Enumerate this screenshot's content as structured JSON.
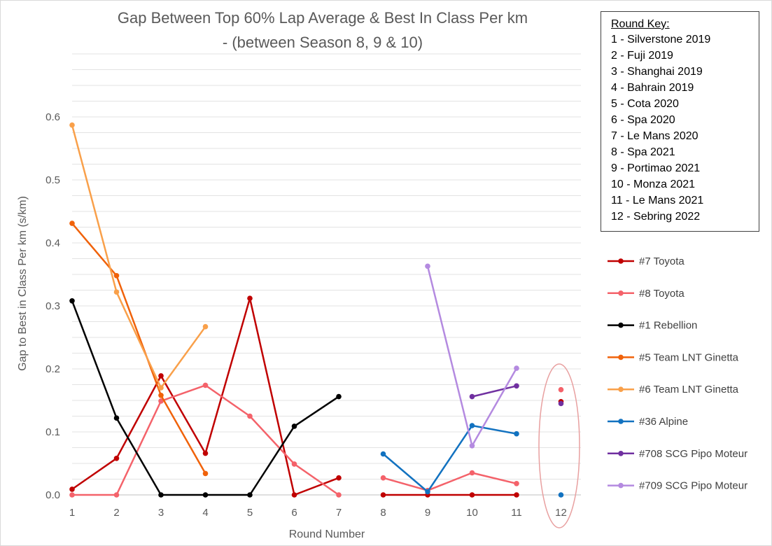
{
  "chart_data": {
    "type": "line",
    "title_line1": "Gap Between Top 60% Lap Average & Best In Class Per km",
    "title_line2": "- (between Season 8, 9 & 10)",
    "xlabel": "Round Number",
    "ylabel": "Gap to Best in Class Per km (s/km)",
    "x_categories": [
      "1",
      "2",
      "3",
      "4",
      "5",
      "6",
      "7",
      "8",
      "9",
      "10",
      "11",
      "12"
    ],
    "ylim": [
      0,
      0.69
    ],
    "yticks": [
      "0.0",
      "0.1",
      "0.2",
      "0.3",
      "0.4",
      "0.5",
      "0.6"
    ],
    "grid": true,
    "legend_position": "right",
    "series": [
      {
        "name": "#7 Toyota",
        "color": "#c00000",
        "points": [
          [
            1,
            0.009
          ],
          [
            2,
            0.058
          ],
          [
            3,
            0.189
          ],
          [
            4,
            0.066
          ],
          [
            5,
            0.312
          ],
          [
            6,
            0.0
          ],
          [
            7,
            0.027
          ],
          null,
          [
            8,
            0.0
          ],
          [
            9,
            0.0
          ],
          [
            10,
            0.0
          ],
          [
            11,
            0.0
          ],
          null,
          [
            12,
            0.148
          ]
        ]
      },
      {
        "name": "#8 Toyota",
        "color": "#f4626a",
        "points": [
          [
            1,
            0.0
          ],
          [
            2,
            0.0
          ],
          [
            3,
            0.149
          ],
          [
            4,
            0.174
          ],
          [
            5,
            0.125
          ],
          [
            6,
            0.049
          ],
          [
            7,
            0.0
          ],
          null,
          [
            8,
            0.027
          ],
          [
            9,
            0.007
          ],
          [
            10,
            0.035
          ],
          [
            11,
            0.018
          ],
          null,
          [
            12,
            0.167
          ]
        ]
      },
      {
        "name": "#1 Rebellion",
        "color": "#000000",
        "points": [
          [
            1,
            0.308
          ],
          [
            2,
            0.122
          ],
          [
            3,
            0.0
          ],
          [
            4,
            0.0
          ],
          [
            5,
            0.0
          ],
          [
            6,
            0.109
          ],
          [
            7,
            0.156
          ]
        ]
      },
      {
        "name": "#5 Team LNT Ginetta",
        "color": "#f0620a",
        "points": [
          [
            1,
            0.431
          ],
          [
            2,
            0.348
          ],
          [
            3,
            0.158
          ],
          [
            4,
            0.034
          ]
        ]
      },
      {
        "name": "#6 Team LNT Ginetta",
        "color": "#f9a04a",
        "points": [
          [
            1,
            0.587
          ],
          [
            2,
            0.322
          ],
          [
            3,
            0.17
          ],
          [
            4,
            0.267
          ]
        ]
      },
      {
        "name": "#36 Alpine",
        "color": "#1272c0",
        "points": [
          [
            8,
            0.065
          ],
          [
            9,
            0.005
          ],
          [
            10,
            0.11
          ],
          [
            11,
            0.097
          ],
          null,
          [
            12,
            0.0
          ]
        ]
      },
      {
        "name": "#708 SCG Pipo Moteur",
        "color": "#7030a0",
        "points": [
          [
            10,
            0.156
          ],
          [
            11,
            0.173
          ],
          null,
          [
            12,
            0.145
          ]
        ]
      },
      {
        "name": "#709 SCG Pipo Moteur",
        "color": "#b48ae0",
        "points": [
          [
            9,
            0.363
          ],
          [
            10,
            0.078
          ],
          [
            11,
            0.201
          ]
        ]
      }
    ],
    "highlight": {
      "shape": "ellipse",
      "around_round": 12,
      "color": "#e8a0a0"
    }
  },
  "round_key": {
    "heading": "Round Key:",
    "items": [
      "1 - Silverstone 2019",
      "2 - Fuji 2019",
      "3 - Shanghai 2019",
      "4 - Bahrain 2019",
      "5 - Cota 2020",
      "6 - Spa 2020",
      "7 - Le Mans 2020",
      "8 - Spa 2021",
      "9 - Portimao 2021",
      "10 - Monza 2021",
      "11 - Le Mans 2021",
      "12 - Sebring 2022"
    ]
  }
}
